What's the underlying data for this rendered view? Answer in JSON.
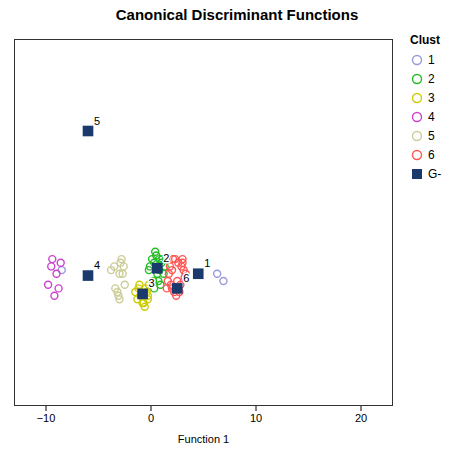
{
  "chart_data": {
    "type": "scatter",
    "title": "Canonical Discriminant Functions",
    "xlabel": "Function 1",
    "xlim": [
      -13,
      23
    ],
    "ylim": [
      -3.5,
      6.5
    ],
    "xticks": [
      -10,
      0,
      10,
      20
    ],
    "tick_labels": "x",
    "grid": false,
    "legend": "right",
    "legend_title": "Clust",
    "series": [
      {
        "name": "1",
        "color": "#9999dd",
        "marker": "circle",
        "x": [
          6.3,
          -8.5,
          6.9
        ],
        "values": [
          0.1,
          0.2,
          -0.1
        ]
      },
      {
        "name": "2",
        "color": "#22bb22",
        "marker": "circle",
        "x": [
          0.3,
          0.8,
          1.1,
          0.6,
          0.2,
          1.3,
          0.5,
          -0.1,
          0.9,
          0.4,
          1.0,
          0.7,
          0.1,
          1.2,
          0.3,
          0.6,
          0.8,
          -0.2
        ],
        "values": [
          0.4,
          0.2,
          0.5,
          0.1,
          -0.1,
          0.3,
          0.6,
          0.3,
          -0.2,
          0.7,
          0.4,
          -0.1,
          0.5,
          0.1,
          -0.3,
          0.3,
          0.5,
          0.2
        ]
      },
      {
        "name": "3",
        "color": "#cccc00",
        "marker": "circle",
        "x": [
          -0.5,
          -1.0,
          -0.3,
          -1.5,
          -0.8,
          -0.2,
          -1.2,
          -0.6,
          -0.9,
          -1.3,
          -0.4,
          -0.7,
          -1.1,
          -0.3
        ],
        "values": [
          -0.3,
          -0.5,
          -0.6,
          -0.4,
          -0.7,
          -0.2,
          -0.3,
          -0.8,
          -0.5,
          -0.6,
          -0.4,
          -0.7,
          -0.2,
          -0.5
        ]
      },
      {
        "name": "4",
        "color": "#cc44cc",
        "marker": "circle",
        "x": [
          -9.5,
          -9.0,
          -8.8,
          -9.2,
          -8.6,
          -9.8,
          -9.4
        ],
        "values": [
          0.3,
          0.1,
          -0.3,
          -0.5,
          0.4,
          -0.2,
          0.5
        ]
      },
      {
        "name": "5",
        "color": "#cccc99",
        "marker": "circle",
        "x": [
          -3.0,
          -3.5,
          -2.5,
          -3.2,
          -2.8,
          -3.8,
          -3.0,
          -2.6,
          -3.4,
          -2.9,
          -3.1,
          -2.7
        ],
        "values": [
          0.1,
          0.3,
          -0.2,
          -0.4,
          0.5,
          0.2,
          -0.6,
          0.3,
          -0.3,
          0.4,
          -0.5,
          0.1
        ]
      },
      {
        "name": "6",
        "color": "#ff5555",
        "marker": "circle",
        "x": [
          2.0,
          2.5,
          1.5,
          3.0,
          2.2,
          1.8,
          2.8,
          2.1,
          3.3,
          2.4,
          1.6,
          2.9,
          2.0,
          3.1,
          2.6,
          1.9,
          2.7,
          3.2,
          2.3,
          1.7,
          2.5,
          3.0
        ],
        "values": [
          0.2,
          -0.1,
          -0.3,
          0.4,
          -0.4,
          0.3,
          -0.2,
          0.5,
          0.1,
          -0.5,
          -0.1,
          0.3,
          -0.3,
          0.2,
          0.4,
          -0.2,
          -0.4,
          0.0,
          0.5,
          0.1,
          -0.3,
          0.5
        ]
      },
      {
        "name": "G-",
        "color": "#1a3a6e",
        "marker": "square",
        "x": [
          4.5,
          0.6,
          -0.8,
          -6.0,
          -6.0,
          2.5
        ],
        "values": [
          0.1,
          0.25,
          -0.45,
          0.05,
          4.0,
          -0.3
        ],
        "labels": [
          "1",
          "2",
          "3",
          "4",
          "5",
          "6"
        ]
      }
    ]
  }
}
